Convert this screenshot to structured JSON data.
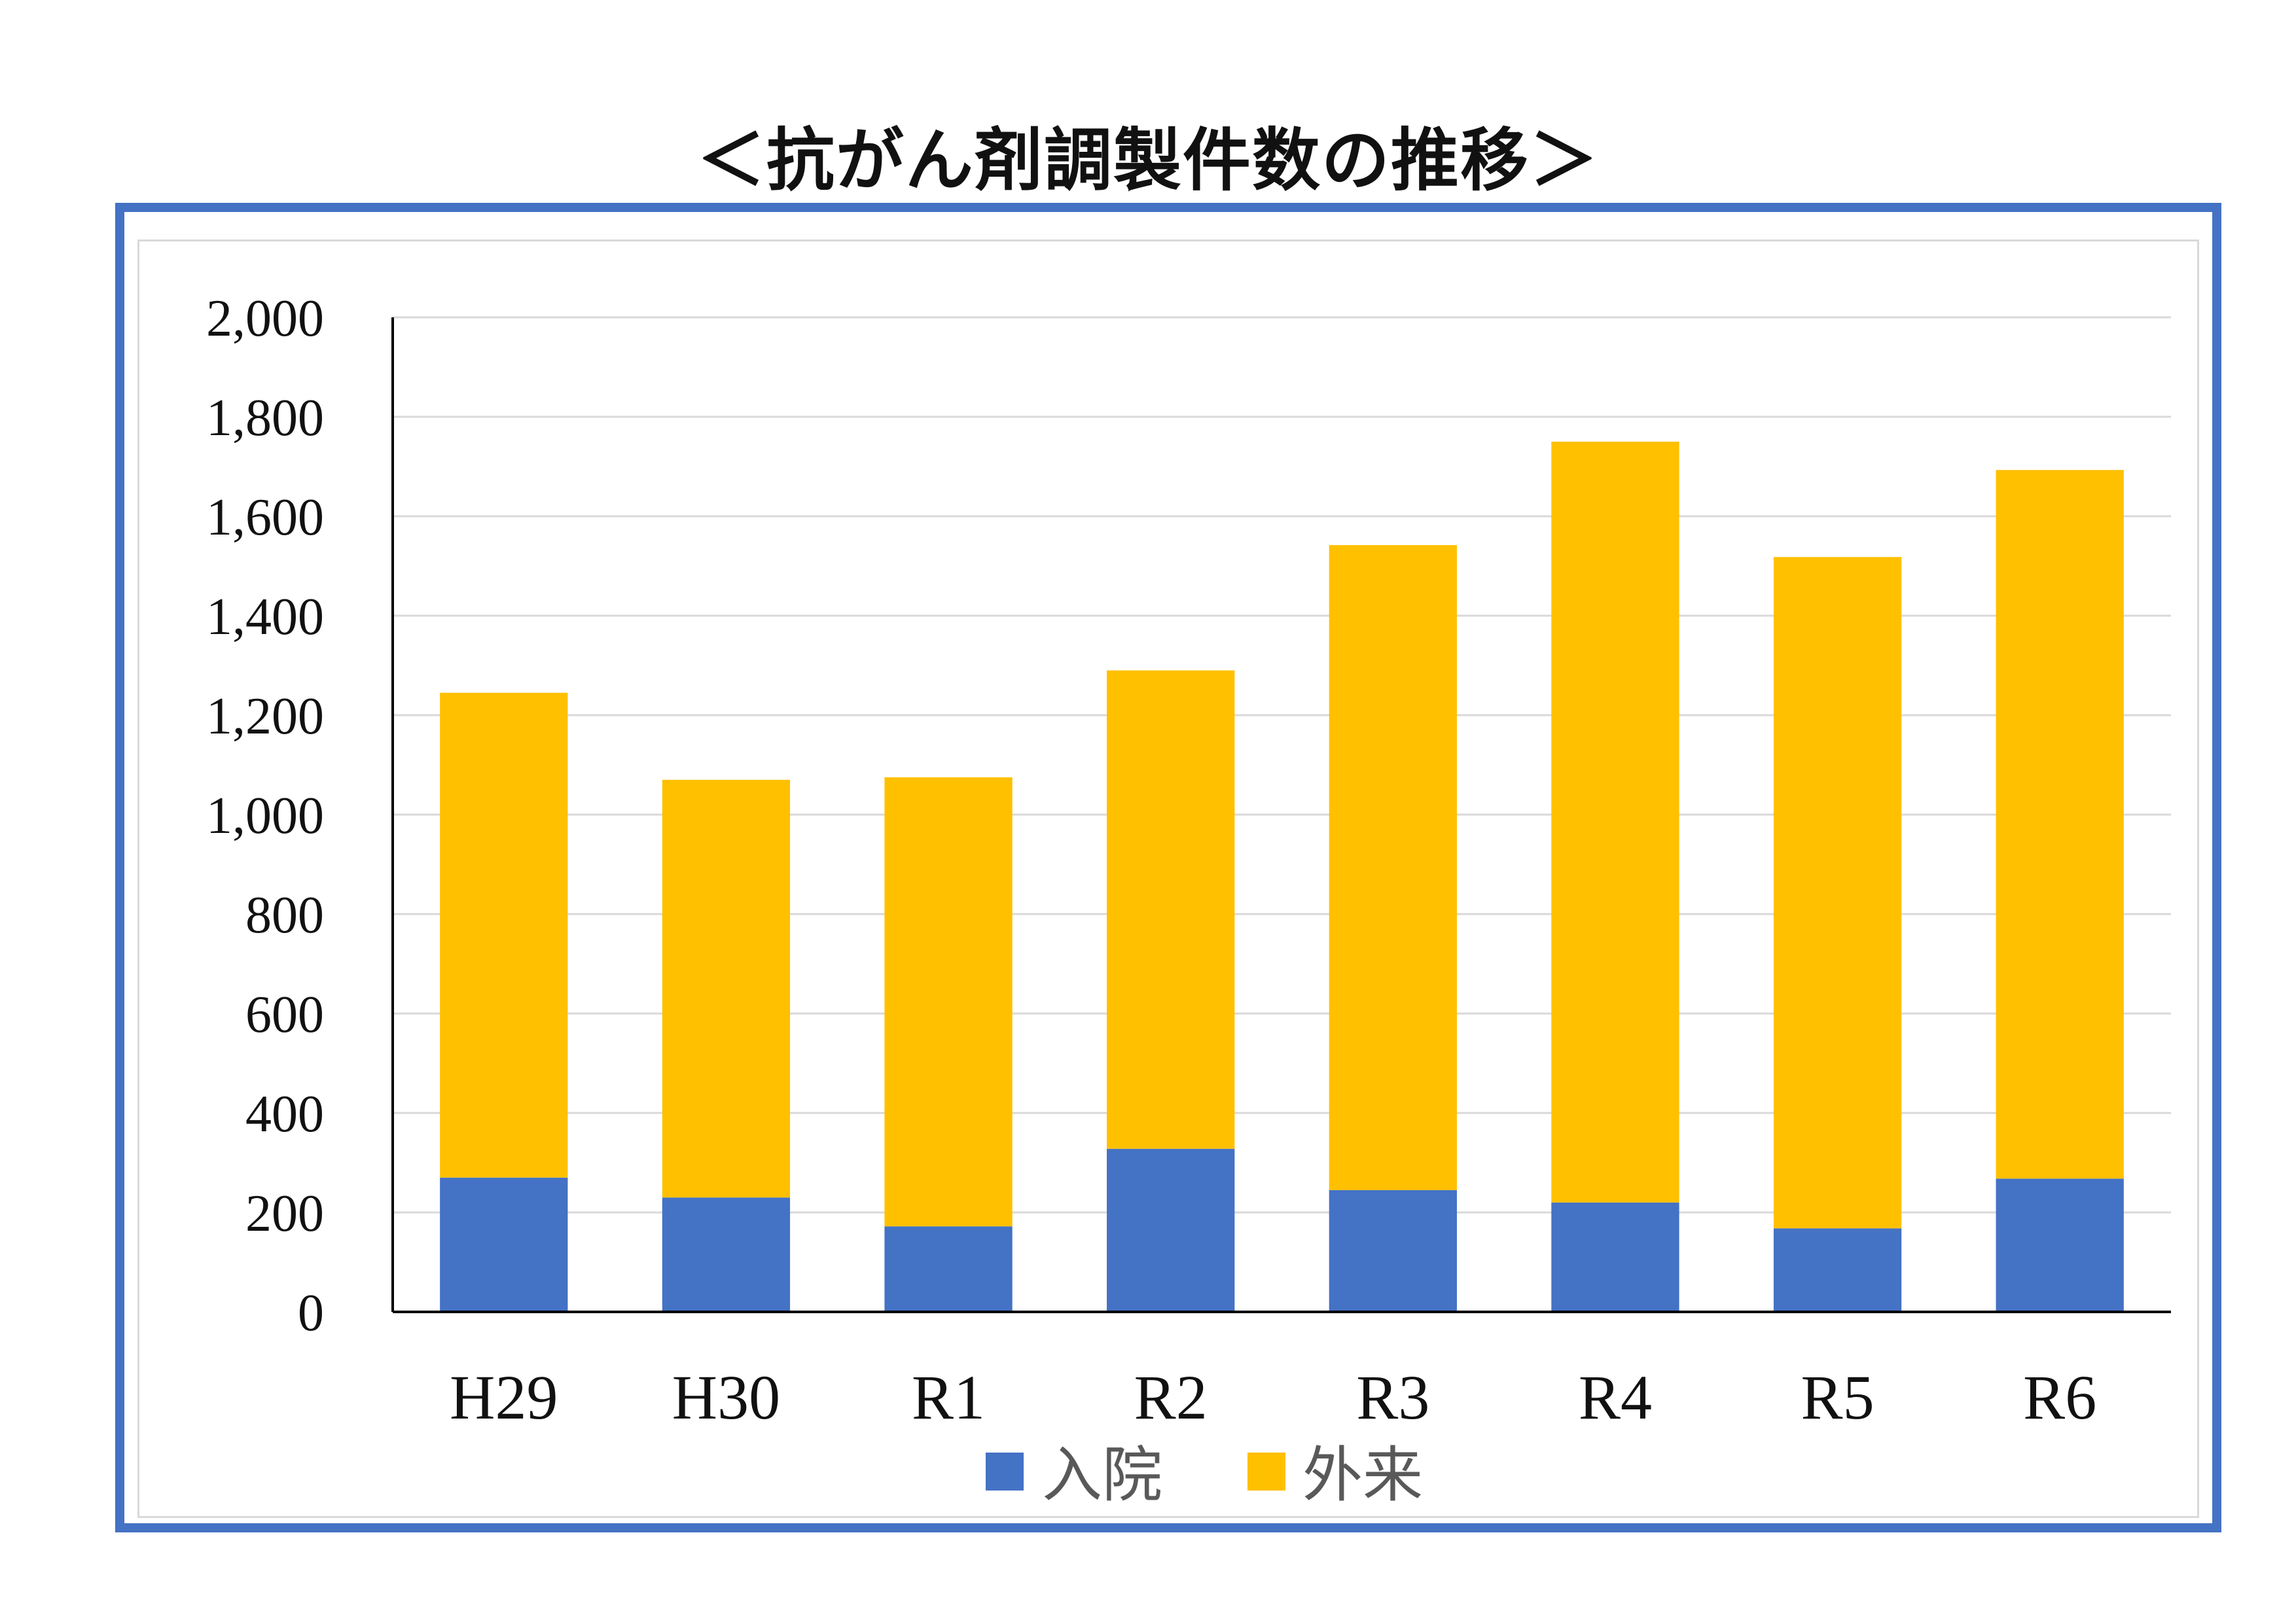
{
  "chart_data": {
    "type": "bar",
    "stacked": true,
    "title": "＜抗がん剤調製件数の推移＞",
    "categories": [
      "H29",
      "H30",
      "R1",
      "R2",
      "R3",
      "R4",
      "R5",
      "R6"
    ],
    "series": [
      {
        "name": "入院",
        "color": "#4472c4",
        "values": [
          270,
          230,
          172,
          328,
          245,
          220,
          168,
          268
        ]
      },
      {
        "name": "外来",
        "color": "#ffc000",
        "values": [
          975,
          840,
          903,
          962,
          1297,
          1530,
          1350,
          1425
        ]
      }
    ],
    "ylim": [
      0,
      2000
    ],
    "yticks": [
      0,
      200,
      400,
      600,
      800,
      1000,
      1200,
      1400,
      1600,
      1800,
      2000
    ],
    "ytick_labels": [
      "0",
      "200",
      "400",
      "600",
      "800",
      "1,000",
      "1,200",
      "1,400",
      "1,600",
      "1,800",
      "2,000"
    ],
    "grid": true,
    "legend": "bottom"
  }
}
